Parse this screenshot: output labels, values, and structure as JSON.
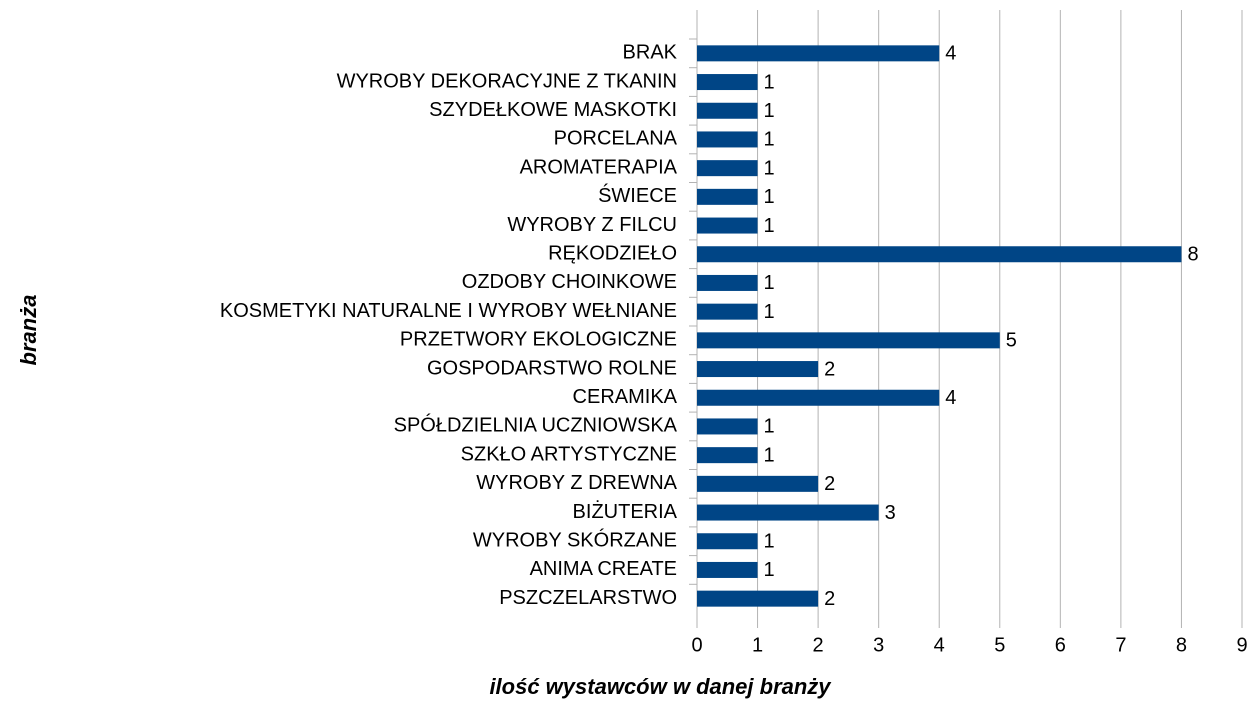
{
  "chart_data": {
    "type": "bar",
    "orientation": "horizontal",
    "x_label": "ilość wystawców w danej branży",
    "y_label": "branża",
    "categories": [
      "BRAK",
      "WYROBY DEKORACYJNE Z TKANIN",
      "SZYDEŁKOWE MASKOTKI",
      "PORCELANA",
      "AROMATERAPIA",
      "ŚWIECE",
      "WYROBY Z FILCU",
      "RĘKODZIEŁO",
      "OZDOBY CHOINKOWE",
      "KOSMETYKI NATURALNE I WYROBY WEŁNIANE",
      "PRZETWORY EKOLOGICZNE",
      "GOSPODARSTWO ROLNE",
      "CERAMIKA",
      "SPÓŁDZIELNIA UCZNIOWSKA",
      "SZKŁO ARTYSTYCZNE",
      "WYROBY Z DREWNA",
      "BIŻUTERIA",
      "WYROBY SKÓRZANE",
      "ANIMA CREATE",
      "PSZCZELARSTWO"
    ],
    "values": [
      4,
      1,
      1,
      1,
      1,
      1,
      1,
      8,
      1,
      1,
      5,
      2,
      4,
      1,
      1,
      2,
      3,
      1,
      1,
      2
    ],
    "color": "#004586",
    "xlim": [
      0,
      9
    ],
    "xticks": [
      0,
      1,
      2,
      3,
      4,
      5,
      6,
      7,
      8,
      9
    ],
    "grid": true
  }
}
